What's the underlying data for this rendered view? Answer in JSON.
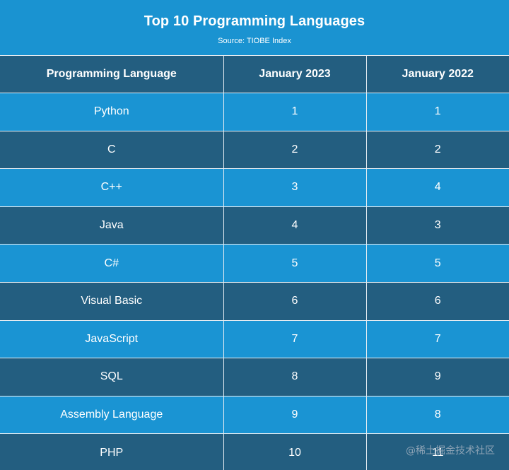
{
  "header": {
    "title": "Top 10 Programming Languages",
    "subtitle": "Source: TIOBE Index"
  },
  "watermark": "@稀土掘金技术社区",
  "colors": {
    "header_bg": "#1a93d1",
    "row_light": "#1a94d3",
    "row_dark": "#235e80",
    "text": "#ffffff"
  },
  "chart_data": {
    "type": "table",
    "title": "Top 10 Programming Languages",
    "subtitle": "Source: TIOBE Index",
    "columns": [
      "Programming Language",
      "January 2023",
      "January 2022"
    ],
    "rows": [
      [
        "Python",
        "1",
        "1"
      ],
      [
        "C",
        "2",
        "2"
      ],
      [
        "C++",
        "3",
        "4"
      ],
      [
        "Java",
        "4",
        "3"
      ],
      [
        "C#",
        "5",
        "5"
      ],
      [
        "Visual Basic",
        "6",
        "6"
      ],
      [
        "JavaScript",
        "7",
        "7"
      ],
      [
        "SQL",
        "8",
        "9"
      ],
      [
        "Assembly Language",
        "9",
        "8"
      ],
      [
        "PHP",
        "10",
        "11"
      ]
    ]
  }
}
